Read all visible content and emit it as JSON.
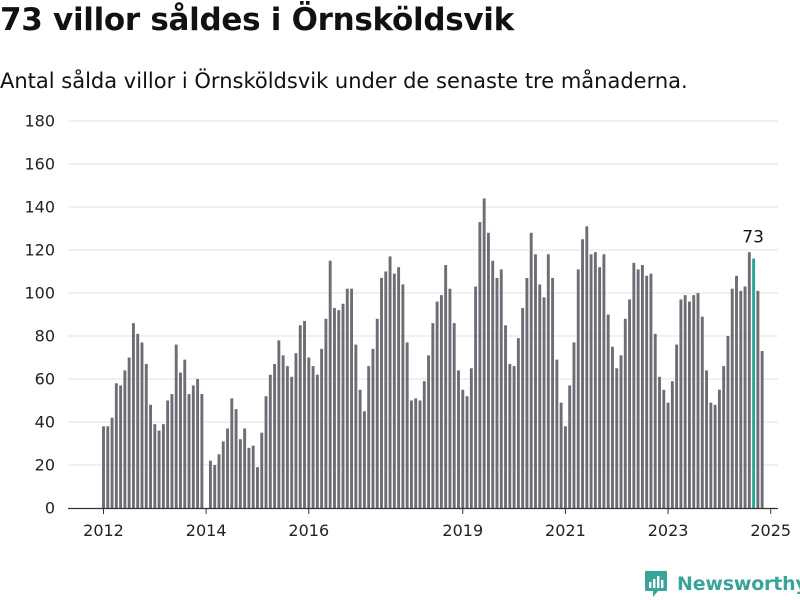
{
  "header": {
    "title": "73 villor såldes i Örnsköldsvik",
    "subtitle": "Antal sålda villor i Örnsköldsvik under de senaste tre månaderna."
  },
  "brand": {
    "name": "Newsworthy",
    "icon": "newsworthy-logo-icon",
    "color": "#3aa39a"
  },
  "colors": {
    "bar": "#6e6d75",
    "highlight": "#2ba597",
    "grid": "#e2e2e2",
    "axis": "#333333"
  },
  "chart_data": {
    "type": "bar",
    "xlabel": "",
    "ylabel": "",
    "ylim": [
      0,
      180
    ],
    "yticks": [
      0,
      20,
      40,
      60,
      80,
      100,
      120,
      140,
      160,
      180
    ],
    "xticks": [
      "2012",
      "2014",
      "2016",
      "2019",
      "2021",
      "2023",
      "2025"
    ],
    "grid": true,
    "legend": "none",
    "series": [
      {
        "values": [
          38,
          38,
          42,
          58,
          57,
          64,
          70,
          86,
          81,
          77,
          67,
          48,
          39,
          36,
          39,
          50,
          53,
          76,
          63,
          69,
          53,
          57,
          60,
          53,
          null,
          22,
          20,
          25,
          31,
          37,
          51,
          46,
          32,
          37,
          28,
          29,
          19,
          35,
          52,
          62,
          67,
          78,
          71,
          66,
          61,
          72,
          85,
          87,
          70,
          66,
          62,
          74,
          88,
          115,
          93,
          92,
          95,
          102,
          102,
          76,
          55,
          45,
          66,
          74,
          88,
          107,
          110,
          117,
          109,
          112,
          104,
          77,
          50,
          51,
          50,
          59,
          71,
          86,
          96,
          99,
          113,
          102,
          86,
          64,
          55,
          52,
          65,
          103,
          133,
          144,
          128,
          115,
          107,
          111,
          85,
          67,
          66,
          79,
          93,
          107,
          128,
          118,
          104,
          98,
          118,
          107,
          69,
          49,
          38,
          57,
          77,
          111,
          125,
          131,
          118,
          119,
          112,
          118,
          90,
          75,
          65,
          71,
          88,
          97,
          114,
          111,
          113,
          108,
          109,
          81,
          61,
          55,
          49,
          59,
          76,
          97,
          99,
          96,
          99,
          100,
          89,
          64,
          49,
          48,
          55,
          66,
          80,
          102,
          108,
          101,
          103,
          119,
          116,
          101,
          73
        ]
      }
    ],
    "highlight": {
      "index": 152,
      "label": "73"
    }
  }
}
